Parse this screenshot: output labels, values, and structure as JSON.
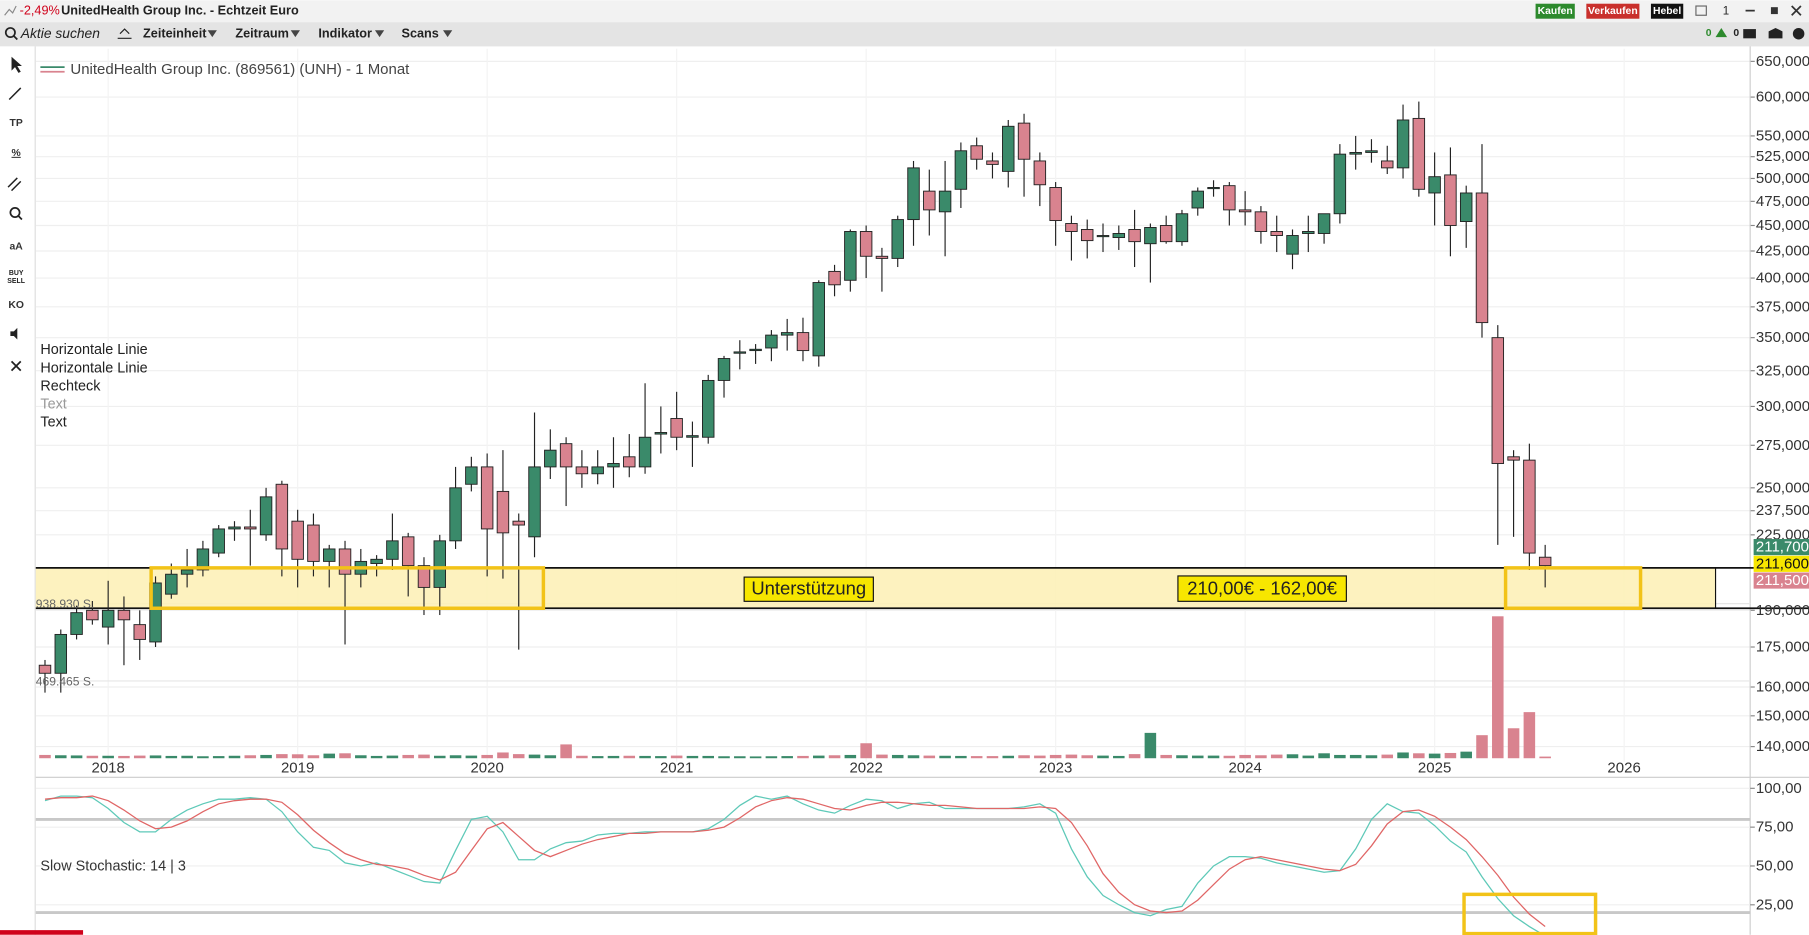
{
  "window": {
    "change": "-2,49%",
    "title": "UnitedHealth Group Inc. - Echtzeit Euro",
    "buttons": [
      "Kaufen",
      "Verkaufen",
      "Hebel"
    ],
    "counter": "1",
    "alerts": [
      "0",
      "0"
    ]
  },
  "toolbar": {
    "search": "Aktie suchen",
    "menus": [
      "Zeiteinheit",
      "Zeitraum",
      "Indikator",
      "Scans"
    ]
  },
  "tools": [
    "TP",
    "%",
    "aA",
    "KO"
  ],
  "buy_sell": [
    "BUY",
    "SELL"
  ],
  "drawings": [
    "Horizontale Linie",
    "Horizontale Linie",
    "Rechteck",
    "Text",
    "Text"
  ],
  "chart_data": [
    {
      "type": "candlestick",
      "title": "UnitedHealth Group Inc. (869561) (UNH) - 1 Monat",
      "log": true,
      "up_color": "#3a8a6a",
      "down_color": "#d9838f",
      "categories": [
        null,
        null,
        null,
        null,
        "2018",
        null,
        null,
        null,
        null,
        null,
        null,
        null,
        null,
        null,
        null,
        null,
        "2019",
        null,
        null,
        null,
        null,
        null,
        null,
        null,
        null,
        null,
        null,
        null,
        "2020",
        null,
        null,
        null,
        null,
        null,
        null,
        null,
        null,
        null,
        null,
        null,
        "2021",
        null,
        null,
        null,
        null,
        null,
        null,
        null,
        null,
        null,
        null,
        null,
        "2022",
        null,
        null,
        null,
        null,
        null,
        null,
        null,
        null,
        null,
        null,
        null,
        "2023",
        null,
        null,
        null,
        null,
        null,
        null,
        null,
        null,
        null,
        null,
        null,
        "2024",
        null,
        null,
        null,
        null,
        null,
        null,
        null,
        null,
        null,
        null,
        null,
        "2025",
        null,
        null,
        null,
        null,
        null,
        null,
        null,
        null,
        null,
        null,
        null,
        "2026"
      ],
      "open": [
        168,
        165,
        180,
        190,
        183,
        190,
        184,
        177,
        197,
        206,
        208,
        216,
        228,
        229,
        225,
        252,
        232,
        230,
        212,
        218,
        206,
        211,
        213,
        224,
        210,
        200,
        222,
        252,
        262,
        248,
        232,
        224,
        262,
        276,
        262,
        258,
        262,
        268,
        262,
        282,
        292,
        280,
        280,
        318,
        338,
        340,
        342,
        352,
        354,
        336,
        406,
        398,
        444,
        420,
        418,
        456,
        486,
        464,
        488,
        538,
        520,
        508,
        566,
        520,
        490,
        452,
        446,
        440,
        438,
        446,
        432,
        450,
        434,
        468,
        490,
        492,
        466,
        464,
        444,
        422,
        442,
        442,
        462,
        528,
        530,
        520,
        512,
        572,
        484,
        504,
        454,
        484,
        350,
        268,
        266,
        214,
        null,
        null,
        null,
        null,
        null
      ],
      "high": [
        170,
        182,
        192,
        194,
        203,
        196,
        190,
        205,
        211,
        218,
        222,
        230,
        232,
        238,
        250,
        254,
        238,
        236,
        220,
        222,
        218,
        215,
        236,
        226,
        214,
        225,
        262,
        268,
        270,
        272,
        236,
        296,
        285,
        280,
        272,
        272,
        280,
        282,
        316,
        300,
        310,
        290,
        322,
        336,
        348,
        345,
        356,
        365,
        366,
        398,
        412,
        446,
        450,
        428,
        460,
        520,
        510,
        520,
        542,
        548,
        530,
        570,
        578,
        530,
        496,
        460,
        456,
        452,
        450,
        466,
        452,
        460,
        466,
        490,
        498,
        496,
        486,
        470,
        460,
        446,
        460,
        462,
        540,
        550,
        546,
        538,
        590,
        594,
        530,
        536,
        492,
        540,
        360,
        272,
        276,
        220,
        null,
        null,
        null,
        null,
        null
      ],
      "low": [
        158,
        158,
        178,
        184,
        176,
        168,
        170,
        175,
        195,
        200,
        205,
        214,
        222,
        210,
        222,
        205,
        200,
        205,
        200,
        176,
        200,
        205,
        208,
        196,
        188,
        188,
        218,
        248,
        205,
        204,
        174,
        214,
        255,
        240,
        250,
        252,
        250,
        256,
        258,
        270,
        272,
        262,
        276,
        306,
        326,
        330,
        332,
        340,
        332,
        328,
        384,
        388,
        400,
        388,
        410,
        430,
        440,
        420,
        468,
        510,
        500,
        490,
        480,
        470,
        430,
        416,
        418,
        424,
        426,
        410,
        396,
        432,
        430,
        460,
        480,
        450,
        450,
        432,
        424,
        408,
        424,
        432,
        452,
        510,
        518,
        505,
        500,
        480,
        450,
        420,
        428,
        350,
        220,
        224,
        208,
        200,
        null,
        null,
        null,
        null,
        null
      ],
      "close": [
        165,
        180,
        189,
        186,
        190,
        186,
        178,
        202,
        206,
        208,
        218,
        228,
        229,
        228,
        245,
        218,
        213,
        212,
        218,
        206,
        212,
        213,
        222,
        210,
        200,
        222,
        250,
        262,
        228,
        226,
        230,
        262,
        272,
        262,
        258,
        262,
        264,
        262,
        280,
        283,
        280,
        281,
        318,
        334,
        339,
        341,
        352,
        354,
        340,
        396,
        394,
        444,
        420,
        418,
        456,
        512,
        466,
        486,
        532,
        522,
        516,
        562,
        522,
        493,
        455,
        444,
        435,
        440,
        442,
        434,
        448,
        434,
        462,
        486,
        490,
        466,
        464,
        444,
        440,
        440,
        444,
        462,
        528,
        530,
        532,
        512,
        570,
        488,
        502,
        450,
        484,
        362,
        264,
        266,
        216,
        210,
        null,
        null,
        null,
        null,
        null
      ],
      "ylim": [
        136.4,
        668.7
      ],
      "yticks": [
        {
          "value": 650,
          "label": "650,000"
        },
        {
          "value": 600,
          "label": "600,000"
        },
        {
          "value": 550,
          "label": "550,000"
        },
        {
          "value": 525,
          "label": "525,000"
        },
        {
          "value": 500,
          "label": "500,000"
        },
        {
          "value": 475,
          "label": "475,000"
        },
        {
          "value": 450,
          "label": "450,000"
        },
        {
          "value": 425,
          "label": "425,000"
        },
        {
          "value": 400,
          "label": "400,000"
        },
        {
          "value": 375,
          "label": "375,000"
        },
        {
          "value": 350,
          "label": "350,000"
        },
        {
          "value": 325,
          "label": "325,000"
        },
        {
          "value": 300,
          "label": "300,000"
        },
        {
          "value": 275,
          "label": "275,000"
        },
        {
          "value": 250,
          "label": "250,000"
        },
        {
          "value": 237.5,
          "label": "237,500"
        },
        {
          "value": 225,
          "label": "225,000"
        },
        {
          "value": 190,
          "label": "190,000"
        },
        {
          "value": 175,
          "label": "175,000"
        },
        {
          "value": 160,
          "label": "160,000"
        },
        {
          "value": 150,
          "label": "150,000"
        },
        {
          "value": 140,
          "label": "140,000"
        }
      ],
      "price_labels": [
        {
          "text": "211,700",
          "color": "#3a8a6a"
        },
        {
          "text": "211,600",
          "color": "#f7e600"
        },
        {
          "text": "211,500",
          "color": "#d9838f"
        }
      ],
      "annotations": [
        "Unterstützung",
        "210,00€ - 162,00€"
      ],
      "volume": {
        "values": [
          20000,
          18000,
          17000,
          15000,
          15000,
          14000,
          16000,
          17000,
          14000,
          15000,
          12000,
          13000,
          15000,
          18000,
          20000,
          25000,
          24000,
          18000,
          28000,
          30000,
          18000,
          14000,
          16000,
          20000,
          22000,
          15000,
          18000,
          16000,
          20000,
          35000,
          25000,
          22000,
          18000,
          84000,
          15000,
          13000,
          14000,
          15000,
          14000,
          13000,
          16000,
          14000,
          14000,
          12000,
          12000,
          11000,
          12000,
          13000,
          14000,
          16000,
          18000,
          20000,
          91000,
          22000,
          20000,
          18000,
          16000,
          15000,
          14000,
          13000,
          13000,
          15000,
          18000,
          16000,
          20000,
          22000,
          18000,
          16000,
          14000,
          25000,
          154000,
          20000,
          18000,
          16000,
          16000,
          15000,
          20000,
          18000,
          22000,
          24000,
          16000,
          30000,
          20000,
          20000,
          18000,
          22000,
          35000,
          30000,
          28000,
          32000,
          40000,
          140000,
          862000,
          182000,
          280000,
          10000,
          null,
          null,
          null,
          null,
          null
        ],
        "ylim": [
          0,
          938930
        ],
        "yticks": [
          {
            "value": 938930,
            "label": "938.930 S."
          },
          {
            "value": 469465,
            "label": "469.465 S."
          }
        ]
      }
    },
    {
      "type": "line",
      "title": "Slow Stochastic: 14 | 3",
      "ylim": [
        0,
        106
      ],
      "yticks": [
        {
          "value": 100,
          "label": "100,00"
        },
        {
          "value": 75,
          "label": "75,00"
        },
        {
          "value": 50,
          "label": "50,00"
        },
        {
          "value": 25,
          "label": "25,00"
        }
      ],
      "levels": [
        80,
        20
      ],
      "series": [
        {
          "color": "#5ec9b8",
          "values": [
            92,
            95,
            95,
            94,
            87,
            78,
            72,
            72,
            80,
            86,
            90,
            93,
            93,
            94,
            93,
            85,
            72,
            62,
            60,
            52,
            50,
            52,
            48,
            44,
            40,
            39,
            60,
            80,
            82,
            72,
            54,
            54,
            61,
            65,
            66,
            70,
            71,
            71,
            72,
            72,
            72,
            72,
            74,
            80,
            89,
            95,
            93,
            95,
            90,
            86,
            84,
            89,
            93,
            92,
            87,
            90,
            91,
            87,
            87,
            87,
            87,
            87,
            88,
            90,
            84,
            61,
            43,
            31,
            25,
            20,
            18,
            22,
            24,
            39,
            50,
            56,
            56,
            55,
            52,
            50,
            48,
            46,
            47,
            61,
            80,
            90,
            85,
            84,
            76,
            66,
            59,
            43,
            29,
            18,
            11,
            5,
            null,
            null,
            null,
            null,
            null
          ]
        },
        {
          "color": "#e06666",
          "values": [
            93,
            94,
            94,
            95,
            92,
            86,
            79,
            74,
            75,
            79,
            85,
            90,
            92,
            93,
            93,
            91,
            83,
            73,
            65,
            58,
            54,
            51,
            50,
            48,
            44,
            41,
            46,
            60,
            74,
            78,
            69,
            60,
            56,
            60,
            64,
            67,
            69,
            71,
            71,
            72,
            72,
            72,
            73,
            75,
            81,
            88,
            92,
            94,
            93,
            90,
            87,
            86,
            89,
            91,
            91,
            90,
            89,
            89,
            88,
            87,
            87,
            87,
            87,
            88,
            87,
            78,
            63,
            45,
            33,
            25,
            21,
            20,
            21,
            28,
            38,
            48,
            54,
            56,
            54,
            52,
            50,
            48,
            47,
            51,
            63,
            77,
            85,
            86,
            82,
            75,
            67,
            56,
            44,
            30,
            19,
            11,
            null,
            null,
            null,
            null,
            null
          ]
        }
      ]
    }
  ]
}
